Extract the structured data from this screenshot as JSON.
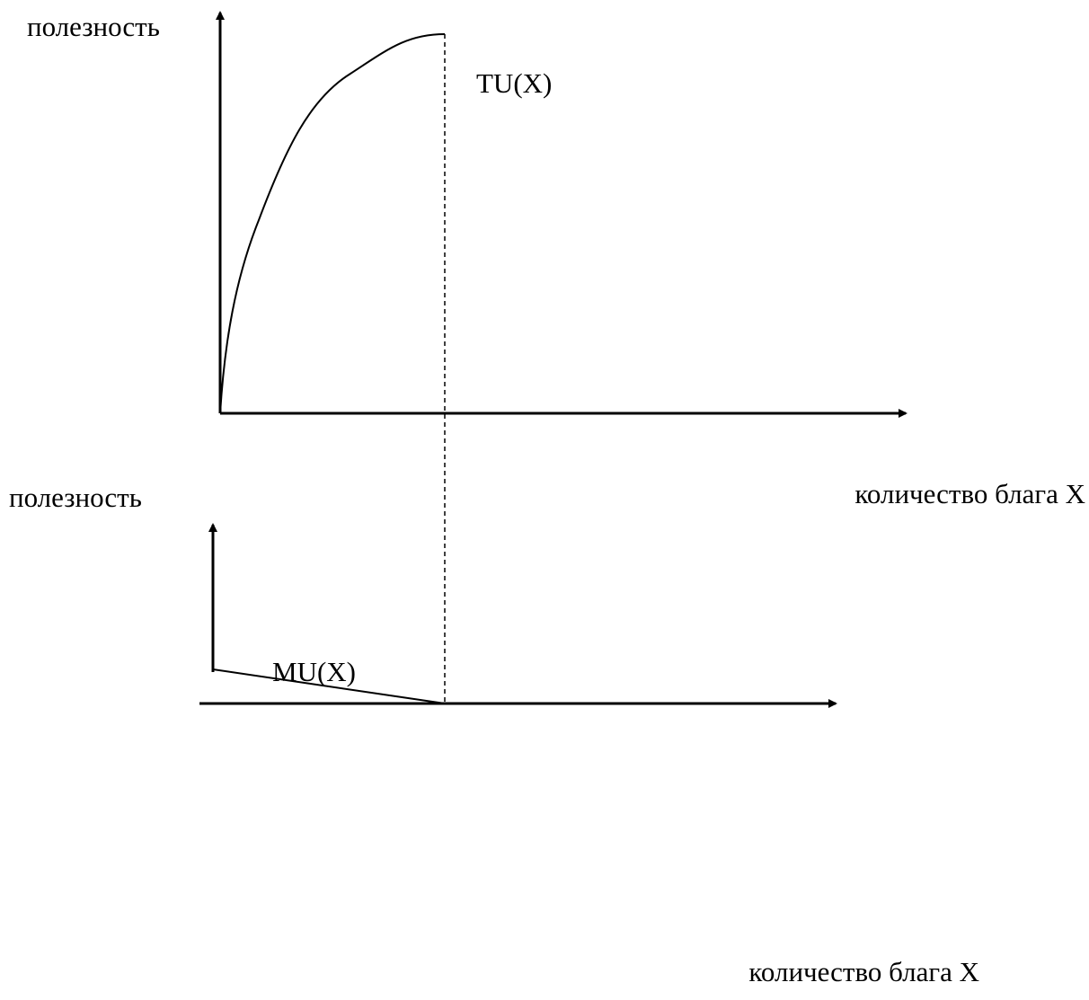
{
  "panels": [
    {
      "y_label": "полезность",
      "curve_label": "TU(X)",
      "x_label": "количество блага X"
    },
    {
      "y_label": "полезность",
      "curve_label": "MU(X)",
      "x_label": "количество блага X"
    }
  ]
}
